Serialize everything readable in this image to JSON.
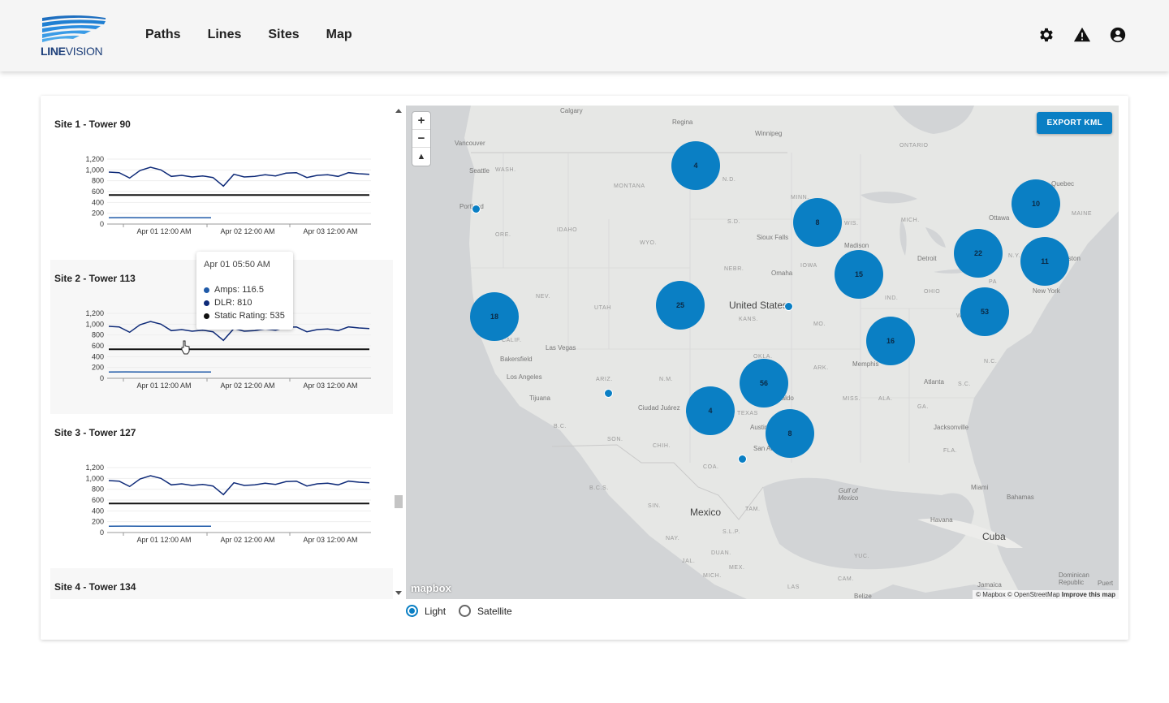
{
  "app": {
    "logo_name": "LINEVISION",
    "logo_bold": "LINE",
    "logo_light": "VISION",
    "nav": [
      "Paths",
      "Lines",
      "Sites",
      "Map"
    ]
  },
  "header_icons": [
    "gear-icon",
    "warning-icon",
    "account-icon"
  ],
  "sites": [
    {
      "title": "Site 1 - Tower 90"
    },
    {
      "title": "Site 2 - Tower 113"
    },
    {
      "title": "Site 3 - Tower 127"
    },
    {
      "title": "Site 4 - Tower 134"
    }
  ],
  "chart_data": {
    "type": "line",
    "y_ticks": [
      "1,200",
      "1,000",
      "800",
      "600",
      "400",
      "200",
      "0"
    ],
    "x_ticks": [
      "Apr 01 12:00 AM",
      "Apr 02 12:00 AM",
      "Apr 03 12:00 AM"
    ],
    "ylim": [
      0,
      1200
    ],
    "series": [
      {
        "name": "Amps",
        "values": [
          116,
          118,
          116,
          117,
          115,
          116,
          116
        ]
      },
      {
        "name": "DLR",
        "values": [
          960,
          950,
          850,
          990,
          1050,
          1000,
          880,
          900,
          870,
          890,
          860,
          700,
          920,
          870,
          880,
          910,
          890,
          940,
          950,
          860,
          900,
          910,
          880,
          950,
          930,
          920
        ]
      },
      {
        "name": "Static Rating",
        "values": [
          535,
          535
        ]
      }
    ]
  },
  "tooltip": {
    "title": "Apr 01 05:50 AM",
    "amps": "Amps: 116.5",
    "dlr": "DLR: 810",
    "static": "Static Rating: 535"
  },
  "map": {
    "export_label": "EXPORT KML",
    "zoom_in": "+",
    "zoom_out": "−",
    "compass": "▲",
    "mapbox_label": "mapbox",
    "attribution": "© Mapbox © OpenStreetMap",
    "improve": "Improve this map",
    "clusters": [
      "4",
      "8",
      "10",
      "22",
      "11",
      "15",
      "18",
      "25",
      "53",
      "16",
      "56",
      "4",
      "8"
    ],
    "labels": {
      "calgary": "Calgary",
      "regina": "Regina",
      "winnipeg": "Winnipeg",
      "ontario": "ONTARIO",
      "vancouver": "Vancouver",
      "seattle": "Seattle",
      "wash": "WASH.",
      "montana": "MONTANA",
      "nd": "N.D.",
      "minn": "MINN.",
      "quebec": "Quebec",
      "portland": "Portland",
      "sd": "S.D.",
      "wis": "WIS.",
      "ottawa": "Ottawa",
      "maine": "MAINE",
      "idaho": "IDAHO",
      "ore": "ORE.",
      "wyo": "WYO.",
      "sioux": "Sioux Falls",
      "madison": "Madison",
      "mich": "MICH.",
      "detroit": "Detroit",
      "ny": "N.Y.",
      "boston": "Boston",
      "nebr": "NEBR.",
      "omaha": "Omaha",
      "iowa": "IOWA",
      "nev": "NEV.",
      "utah": "UTAH",
      "ohio": "OHIO",
      "ind": "IND.",
      "pa": "PA",
      "newyork": "New York",
      "us": "United States",
      "kans": "KANS.",
      "mo": "MO.",
      "calif": "CALIF.",
      "wv": "W.VA.",
      "lasvegas": "Las Vegas",
      "bakersfield": "Bakersfield",
      "okla": "OKLA.",
      "ark": "ARK.",
      "memphis": "Memphis",
      "nc": "N.C.",
      "la": "Los Angeles",
      "ariz": "ARIZ.",
      "nm": "N.M.",
      "atlanta": "Atlanta",
      "sc": "S.C.",
      "tijuana": "Tijuana",
      "ciudad": "Ciudad Juárez",
      "texas": "TEXAS",
      "miss": "MISS.",
      "ala": "ALA.",
      "ga": "GA.",
      "austin": "Austin",
      "sanan": "San An",
      "jacksonville": "Jacksonville",
      "bc": "B.C.",
      "son": "SON.",
      "chih": "CHIH.",
      "fla": "FLA.",
      "coa": "COA.",
      "bcs": "B.C.S.",
      "gulf": "Gulf of\nMexico",
      "miami": "Miami",
      "bahamas": "Bahamas",
      "sin": "SIN.",
      "mexico": "Mexico",
      "tam": "TAM.",
      "havana": "Havana",
      "cuba": "Cuba",
      "slp": "S.L.P.",
      "nay": "NAY.",
      "duan": "DUAN.",
      "yuc": "YUC.",
      "jal": "JAL.",
      "mex": "MEX.",
      "mich2": "MICH.",
      "cam": "CAM.",
      "belize": "Belize",
      "dominican": "Dominican\nRepublic",
      "jamaica": "Jamaica",
      "puerto": "Puert",
      "las": "LAS",
      "ntaldo": "ntaldo"
    }
  },
  "basemap": {
    "options": [
      "Light",
      "Satellite"
    ],
    "selected": "Light"
  }
}
